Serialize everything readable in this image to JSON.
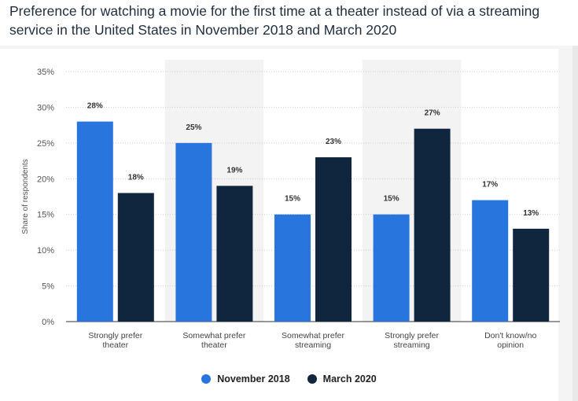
{
  "chart_data": {
    "type": "bar",
    "title": "Preference for watching a movie for the first time at a theater instead of via a streaming service in the United States in November 2018 and March 2020",
    "ylabel": "Share of respondents",
    "xlabel": "",
    "ylim": [
      0,
      35
    ],
    "yticks": [
      "0%",
      "5%",
      "10%",
      "15%",
      "20%",
      "25%",
      "30%",
      "35%"
    ],
    "ytick_values": [
      0,
      5,
      10,
      15,
      20,
      25,
      30,
      35
    ],
    "categories": [
      [
        "Strongly prefer",
        "theater"
      ],
      [
        "Somewhat prefer",
        "theater"
      ],
      [
        "Somewhat prefer",
        "streaming"
      ],
      [
        "Strongly prefer",
        "streaming"
      ],
      [
        "Don't know/no",
        "opinion"
      ]
    ],
    "series": [
      {
        "name": "November 2018",
        "color": "#2876dd",
        "values": [
          28,
          25,
          15,
          15,
          17
        ],
        "labels": [
          "28%",
          "25%",
          "15%",
          "15%",
          "17%"
        ]
      },
      {
        "name": "March 2020",
        "color": "#10263f",
        "values": [
          18,
          19,
          23,
          27,
          13
        ],
        "labels": [
          "18%",
          "19%",
          "23%",
          "27%",
          "13%"
        ]
      }
    ],
    "grid": true,
    "legend": "bottom-center",
    "shaded_bands": [
      1,
      3
    ]
  }
}
